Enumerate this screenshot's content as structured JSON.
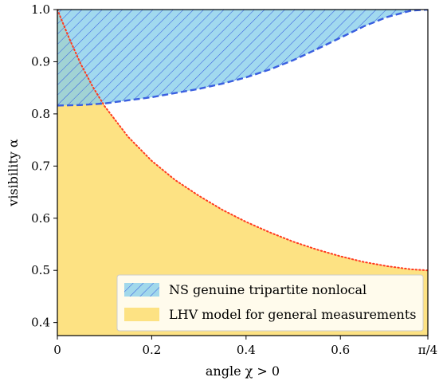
{
  "chart_data": {
    "type": "area",
    "xlabel": "angle χ > 0",
    "ylabel": "visibility α",
    "xlim": [
      0,
      0.7854
    ],
    "ylim": [
      0.375,
      1.0
    ],
    "xticks": [
      {
        "value": 0,
        "label": "0"
      },
      {
        "value": 0.2,
        "label": "0.2"
      },
      {
        "value": 0.4,
        "label": "0.4"
      },
      {
        "value": 0.6,
        "label": "0.6"
      },
      {
        "value": 0.7854,
        "label": "π/4"
      }
    ],
    "yticks": [
      {
        "value": 0.4,
        "label": "0.4"
      },
      {
        "value": 0.5,
        "label": "0.5"
      },
      {
        "value": 0.6,
        "label": "0.6"
      },
      {
        "value": 0.7,
        "label": "0.7"
      },
      {
        "value": 0.8,
        "label": "0.8"
      },
      {
        "value": 0.9,
        "label": "0.9"
      },
      {
        "value": 1.0,
        "label": "1.0"
      }
    ],
    "grid": false,
    "legend_position": "bottom-right",
    "series": [
      {
        "name": "NS genuine tripartite nonlocal",
        "style": "hatched-fill-above-dashed-boundary",
        "fill_color": "#87ceeb",
        "line_color": "#3a5fe0",
        "x": [
          0,
          0.05,
          0.1,
          0.15,
          0.2,
          0.25,
          0.3,
          0.35,
          0.4,
          0.45,
          0.5,
          0.55,
          0.6,
          0.65,
          0.7,
          0.75,
          0.7854
        ],
        "y": [
          0.816,
          0.817,
          0.82,
          0.826,
          0.832,
          0.84,
          0.848,
          0.858,
          0.87,
          0.885,
          0.903,
          0.924,
          0.946,
          0.968,
          0.986,
          0.998,
          1.0
        ]
      },
      {
        "name": "LHV model for general measurements",
        "style": "fill-below-dotted-boundary",
        "fill_color": "#fde283",
        "line_color": "#ff3b1f",
        "x": [
          0,
          0.025,
          0.05,
          0.075,
          0.1,
          0.15,
          0.2,
          0.25,
          0.3,
          0.35,
          0.4,
          0.45,
          0.5,
          0.55,
          0.6,
          0.65,
          0.7,
          0.75,
          0.7854
        ],
        "y": [
          1.0,
          0.945,
          0.895,
          0.852,
          0.815,
          0.756,
          0.71,
          0.673,
          0.643,
          0.616,
          0.593,
          0.573,
          0.555,
          0.54,
          0.527,
          0.516,
          0.508,
          0.502,
          0.5
        ]
      }
    ]
  }
}
